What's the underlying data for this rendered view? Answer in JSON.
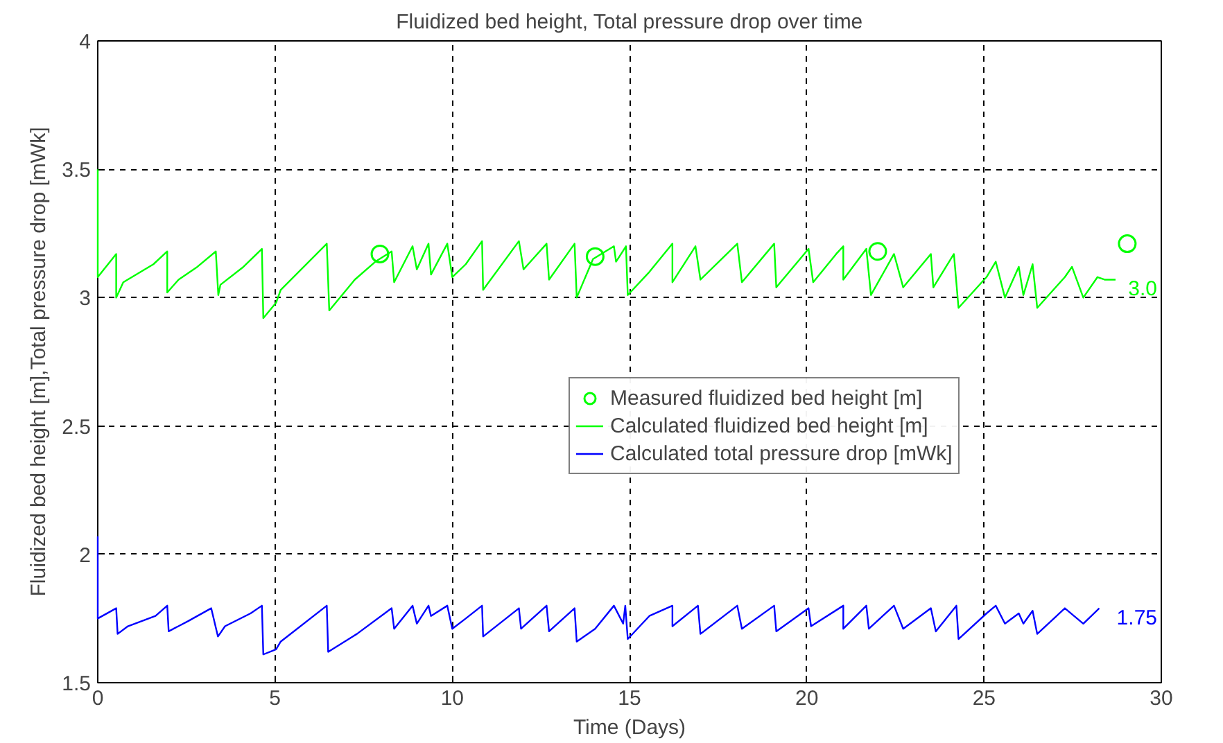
{
  "chart_data": {
    "type": "line",
    "title": "Fluidized bed height, Total pressure drop over time",
    "xlabel": "Time (Days)",
    "ylabel": "Fluidized bed height [m],Total pressure drop [mWk]",
    "xlim": [
      0,
      30
    ],
    "xticks": [
      0,
      5,
      10,
      15,
      20,
      25,
      30
    ],
    "ylim": [
      1.5,
      4
    ],
    "yticks": [
      1.5,
      2,
      2.5,
      3,
      3.5,
      4
    ],
    "grid": true,
    "legend": "right",
    "series": [
      {
        "name": "Measured fluidized bed height [m]",
        "type": "scatter",
        "marker": "circle",
        "color": "#00ff00",
        "x": [
          7.96,
          14.03,
          22.0,
          29.04
        ],
        "values": [
          3.17,
          3.16,
          3.18,
          3.21
        ]
      },
      {
        "name": "Calculated fluidized bed height [m]",
        "color": "#00ff00",
        "x": [
          0,
          0,
          0.52,
          0.52,
          0.72,
          1.57,
          1.96,
          1.96,
          2.28,
          2.81,
          3.33,
          3.4,
          3.46,
          4.11,
          4.63,
          4.67,
          5.03,
          5.16,
          6.46,
          6.53,
          7.25,
          7.83,
          8.29,
          8.36,
          8.88,
          9.0,
          9.33,
          9.4,
          9.86,
          10.0,
          10.38,
          10.84,
          10.87,
          11.88,
          12.01,
          12.66,
          12.73,
          13.45,
          13.51,
          13.97,
          14.56,
          14.62,
          14.9,
          14.95,
          15.56,
          16.21,
          16.21,
          16.86,
          17.0,
          18.04,
          18.17,
          19.08,
          19.14,
          20.05,
          20.18,
          20.83,
          21.03,
          21.03,
          21.68,
          21.81,
          22.46,
          22.72,
          23.5,
          23.57,
          24.15,
          24.28,
          25.07,
          25.33,
          25.59,
          25.98,
          26.11,
          26.37,
          26.5,
          27.28,
          27.48,
          27.8,
          28.2,
          28.4,
          28.71
        ],
        "values": [
          3.5,
          3.08,
          3.17,
          3.0,
          3.06,
          3.13,
          3.18,
          3.02,
          3.07,
          3.12,
          3.18,
          3.01,
          3.05,
          3.12,
          3.19,
          2.92,
          2.98,
          3.03,
          3.21,
          2.95,
          3.07,
          3.14,
          3.18,
          3.06,
          3.2,
          3.11,
          3.21,
          3.09,
          3.21,
          3.08,
          3.13,
          3.22,
          3.03,
          3.22,
          3.11,
          3.21,
          3.07,
          3.21,
          3.0,
          3.15,
          3.2,
          3.14,
          3.2,
          3.01,
          3.1,
          3.21,
          3.06,
          3.2,
          3.07,
          3.21,
          3.06,
          3.21,
          3.04,
          3.19,
          3.06,
          3.17,
          3.2,
          3.07,
          3.19,
          3.01,
          3.17,
          3.04,
          3.17,
          3.04,
          3.17,
          2.96,
          3.08,
          3.14,
          3.0,
          3.12,
          3.01,
          3.13,
          2.96,
          3.08,
          3.12,
          3.0,
          3.08,
          3.07,
          3.07
        ]
      },
      {
        "name": "Calculated total pressure drop [mWk]",
        "color": "#0000ff",
        "x": [
          0,
          0,
          0.52,
          0.56,
          0.85,
          1.63,
          1.96,
          2.0,
          2.55,
          3.2,
          3.39,
          3.59,
          4.31,
          4.63,
          4.67,
          5.03,
          5.16,
          6.46,
          6.5,
          7.31,
          8.29,
          8.36,
          8.88,
          9.0,
          9.33,
          9.4,
          9.86,
          10.0,
          10.38,
          10.84,
          10.87,
          11.88,
          11.94,
          12.66,
          12.73,
          13.45,
          13.51,
          14.03,
          14.56,
          14.82,
          14.88,
          14.95,
          15.56,
          16.21,
          16.21,
          16.93,
          17.0,
          18.04,
          18.17,
          19.08,
          19.14,
          20.05,
          20.12,
          21.03,
          21.03,
          21.68,
          21.75,
          22.46,
          22.72,
          23.5,
          23.64,
          24.22,
          24.28,
          25.07,
          25.33,
          25.59,
          25.98,
          26.11,
          26.37,
          26.5,
          27.28,
          27.8,
          28.25
        ],
        "values": [
          2.07,
          1.75,
          1.79,
          1.69,
          1.72,
          1.76,
          1.8,
          1.7,
          1.74,
          1.79,
          1.68,
          1.72,
          1.77,
          1.8,
          1.61,
          1.63,
          1.66,
          1.8,
          1.62,
          1.69,
          1.79,
          1.71,
          1.8,
          1.73,
          1.8,
          1.76,
          1.8,
          1.71,
          1.75,
          1.8,
          1.68,
          1.79,
          1.71,
          1.8,
          1.7,
          1.79,
          1.66,
          1.71,
          1.8,
          1.73,
          1.8,
          1.67,
          1.76,
          1.8,
          1.72,
          1.8,
          1.69,
          1.8,
          1.71,
          1.8,
          1.7,
          1.79,
          1.72,
          1.8,
          1.71,
          1.8,
          1.71,
          1.8,
          1.71,
          1.79,
          1.7,
          1.8,
          1.67,
          1.77,
          1.8,
          1.73,
          1.77,
          1.73,
          1.78,
          1.69,
          1.79,
          1.73,
          1.79
        ]
      }
    ],
    "annotations": [
      "3.0",
      "1.75"
    ]
  }
}
